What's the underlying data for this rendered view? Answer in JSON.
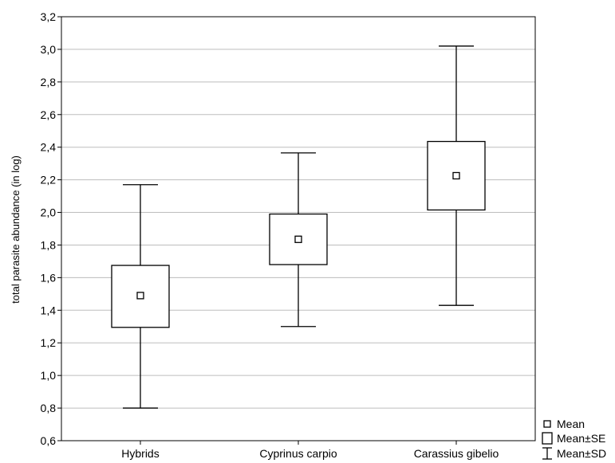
{
  "chart_data": {
    "type": "box",
    "title": "",
    "xlabel": "",
    "ylabel": "total parasite abundance (in log)",
    "ylim": [
      0.6,
      3.2
    ],
    "y_ticks": [
      "0,6",
      "0,8",
      "1,0",
      "1,2",
      "1,4",
      "1,6",
      "1,8",
      "2,0",
      "2,2",
      "2,4",
      "2,6",
      "2,8",
      "3,0",
      "3,2"
    ],
    "y_tick_values": [
      0.6,
      0.8,
      1.0,
      1.2,
      1.4,
      1.6,
      1.8,
      2.0,
      2.2,
      2.4,
      2.6,
      2.8,
      3.0,
      3.2
    ],
    "grid": true,
    "categories": [
      "Hybrids",
      "Cyprinus carpio",
      "Carassius gibelio"
    ],
    "mean": [
      1.49,
      1.835,
      2.225
    ],
    "se_low": [
      1.295,
      1.68,
      2.015
    ],
    "se_high": [
      1.675,
      1.99,
      2.435
    ],
    "sd_low": [
      0.8,
      1.3,
      1.43
    ],
    "sd_high": [
      2.17,
      2.365,
      3.02
    ],
    "legend": {
      "position": "bottom-right",
      "items": [
        "Mean",
        "Mean±SE",
        "Mean±SD"
      ]
    }
  }
}
